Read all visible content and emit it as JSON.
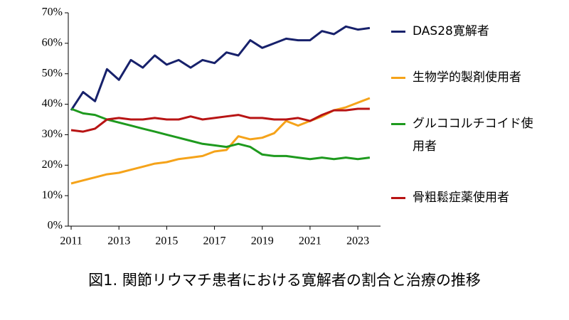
{
  "chart_data": {
    "type": "line",
    "caption": "図1. 関節リウマチ患者における寛解者の割合と治療の推移",
    "x": [
      2011,
      2011.5,
      2012,
      2012.5,
      2013,
      2013.5,
      2014,
      2014.5,
      2015,
      2015.5,
      2016,
      2016.5,
      2017,
      2017.5,
      2018,
      2018.5,
      2019,
      2019.5,
      2020,
      2020.5,
      2021,
      2021.5,
      2022,
      2022.5,
      2023,
      2023.5
    ],
    "series": [
      {
        "name": "DAS28寛解者",
        "color": "#17216b",
        "values": [
          38,
          44,
          41,
          51.5,
          48,
          54.5,
          52,
          56,
          53,
          54.5,
          52,
          54.5,
          53.5,
          57,
          56,
          61,
          58.5,
          60,
          61.5,
          61,
          61,
          64,
          63,
          65.5,
          64.5,
          65
        ]
      },
      {
        "name": "生物学的製剤使用者",
        "color": "#f5a31a",
        "values": [
          14,
          15,
          16,
          17,
          17.5,
          18.5,
          19.5,
          20.5,
          21,
          22,
          22.5,
          23,
          24.5,
          25,
          29.5,
          28.5,
          29,
          30.5,
          34.5,
          33,
          34.5,
          36,
          38,
          39,
          40.5,
          42
        ]
      },
      {
        "name": "グルココルチコイド使用者",
        "color": "#1e9a1e",
        "values": [
          38.5,
          37,
          36.5,
          35,
          34,
          33,
          32,
          31,
          30,
          29,
          28,
          27,
          26.5,
          26,
          27,
          26,
          23.5,
          23,
          23,
          22.5,
          22,
          22.5,
          22,
          22.5,
          22,
          22.5
        ]
      },
      {
        "name": "骨粗鬆症薬使用者",
        "color": "#b81414",
        "values": [
          31.5,
          31,
          32,
          35,
          35.5,
          35,
          35,
          35.5,
          35,
          35,
          36,
          35,
          35.5,
          36,
          36.5,
          35.5,
          35.5,
          35,
          35,
          35.5,
          34.5,
          36.5,
          38,
          38,
          38.5,
          38.5
        ]
      }
    ],
    "xlim": [
      2010.88,
      2023.95
    ],
    "xticks": [
      2011,
      2013,
      2015,
      2017,
      2019,
      2021,
      2023
    ],
    "ylim": [
      0,
      70
    ],
    "yticks": [
      {
        "value": 0,
        "label": "0%"
      },
      {
        "value": 10,
        "label": "10%"
      },
      {
        "value": 20,
        "label": "20%"
      },
      {
        "value": 30,
        "label": "30%"
      },
      {
        "value": 40,
        "label": "40%"
      },
      {
        "value": 50,
        "label": "50%"
      },
      {
        "value": 60,
        "label": "60%"
      },
      {
        "value": 70,
        "label": "70%"
      }
    ]
  }
}
